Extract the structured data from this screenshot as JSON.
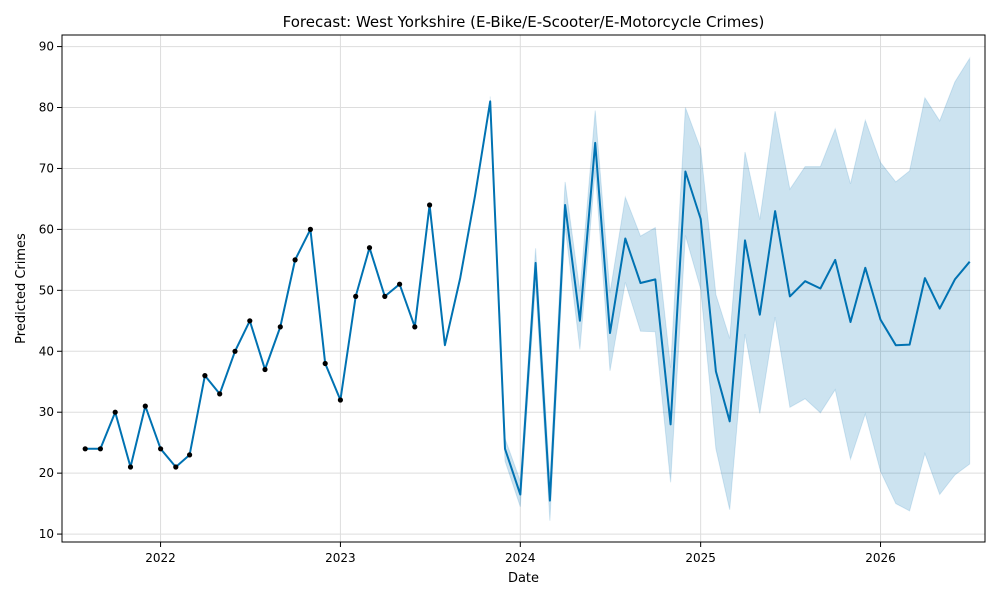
{
  "chart_data": {
    "type": "line",
    "title": "Forecast: West Yorkshire (E-Bike/E-Scooter/E-Motorcycle Crimes)",
    "xlabel": "Date",
    "ylabel": "Predicted Crimes",
    "x_ticks": [
      "2022",
      "2023",
      "2024",
      "2025",
      "2026"
    ],
    "y_ticks": [
      10,
      20,
      30,
      40,
      50,
      60,
      70,
      80,
      90
    ],
    "xlim": [
      "2021-06-15",
      "2026-08-01"
    ],
    "ylim": [
      8.7,
      91.9
    ],
    "grid": true,
    "colors": {
      "forecast_line": "#0072b2",
      "interval_fill": "#0072b2",
      "observed_points": "#000000",
      "grid": "#dddddd"
    },
    "observed": {
      "x": [
        "2021-08",
        "2021-09",
        "2021-10",
        "2021-11",
        "2021-12",
        "2022-01",
        "2022-02",
        "2022-03",
        "2022-04",
        "2022-05",
        "2022-06",
        "2022-07",
        "2022-08",
        "2022-09",
        "2022-10",
        "2022-11",
        "2022-12",
        "2023-01",
        "2023-02",
        "2023-03",
        "2023-04",
        "2023-05",
        "2023-06",
        "2023-07"
      ],
      "y": [
        24,
        24,
        30,
        21,
        31,
        24,
        21,
        23,
        36,
        33,
        40,
        45,
        37,
        44,
        55,
        60,
        38,
        32,
        49,
        57,
        49,
        51,
        44,
        64
      ]
    },
    "forecast": {
      "x": [
        "2021-08",
        "2021-09",
        "2021-10",
        "2021-11",
        "2021-12",
        "2022-01",
        "2022-02",
        "2022-03",
        "2022-04",
        "2022-05",
        "2022-06",
        "2022-07",
        "2022-08",
        "2022-09",
        "2022-10",
        "2022-11",
        "2022-12",
        "2023-01",
        "2023-02",
        "2023-03",
        "2023-04",
        "2023-05",
        "2023-06",
        "2023-07",
        "2023-08",
        "2023-09",
        "2023-10",
        "2023-11",
        "2023-12",
        "2024-01",
        "2024-02",
        "2024-03",
        "2024-04",
        "2024-05",
        "2024-06",
        "2024-07",
        "2024-08",
        "2024-09",
        "2024-10",
        "2024-11",
        "2024-12",
        "2025-01",
        "2025-02",
        "2025-03",
        "2025-04",
        "2025-05",
        "2025-06",
        "2025-07",
        "2025-08",
        "2025-09",
        "2025-10",
        "2025-11",
        "2025-12",
        "2026-01",
        "2026-02",
        "2026-03",
        "2026-04",
        "2026-05",
        "2026-06",
        "2026-07"
      ],
      "y": [
        24,
        24,
        30,
        21,
        31,
        24,
        21,
        23,
        36,
        33,
        40,
        45,
        37,
        44,
        55,
        60,
        38,
        32,
        49,
        57,
        49,
        51,
        44,
        64,
        41,
        52,
        65.5,
        81,
        24,
        16.5,
        54.5,
        15.5,
        64,
        45,
        74.2,
        43,
        58.5,
        51.2,
        51.8,
        28,
        69.5,
        61.7,
        36.7,
        28.5,
        58.2,
        46,
        63,
        49,
        51.5,
        50.3,
        55,
        44.8,
        53.7,
        45.2,
        41,
        41.1,
        52,
        47,
        51.8,
        54.7
      ],
      "lower": [
        null,
        null,
        null,
        null,
        null,
        null,
        null,
        null,
        null,
        null,
        null,
        null,
        null,
        null,
        null,
        null,
        null,
        null,
        null,
        null,
        null,
        null,
        null,
        null,
        null,
        null,
        null,
        null,
        22,
        14.5,
        51,
        12.2,
        60.5,
        40.3,
        69.7,
        36.8,
        51.3,
        43.3,
        43.2,
        18.5,
        59,
        50.2,
        24,
        14,
        42.8,
        29.8,
        45.6,
        30.8,
        32.2,
        29.9,
        33.7,
        22.3,
        29.7,
        20.3,
        15,
        13.8,
        23.2,
        16.5,
        19.7,
        21.5
      ],
      "upper": [
        null,
        null,
        null,
        null,
        null,
        null,
        null,
        null,
        null,
        null,
        null,
        null,
        null,
        null,
        null,
        null,
        null,
        null,
        null,
        null,
        null,
        null,
        null,
        null,
        null,
        null,
        null,
        81.8,
        25.7,
        18.7,
        56.9,
        18.8,
        67.8,
        49.8,
        79.5,
        49.6,
        65.3,
        58.9,
        60.3,
        37.3,
        80,
        73.2,
        49.3,
        42.1,
        72.7,
        61.6,
        79.4,
        66.6,
        70.3,
        70.3,
        76.5,
        67.5,
        77.9,
        71,
        67.8,
        69.6,
        81.6,
        77.8,
        84.2,
        88.1
      ]
    }
  }
}
